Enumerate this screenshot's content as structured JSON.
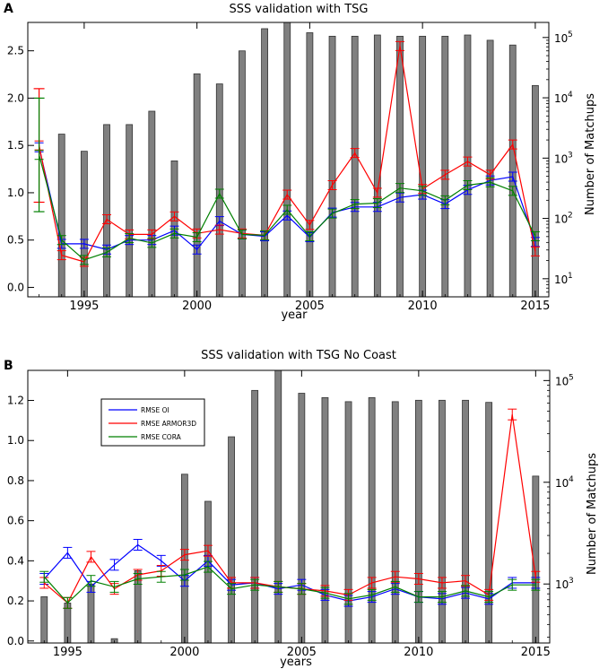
{
  "chart_data": [
    {
      "panel_label": "A",
      "type": "bar",
      "title": "SSS validation with TSG",
      "xlabel": "year",
      "ylabel_left": "",
      "ylabel_right": "Number of Matchups",
      "xlim": [
        1992.5,
        2015.6
      ],
      "ylim": [
        -0.1,
        2.8
      ],
      "y2_log_range": [
        0.7,
        5.25
      ],
      "xticks": [
        1995,
        2000,
        2005,
        2010,
        2015
      ],
      "yticks": [
        0.0,
        0.5,
        1.0,
        1.5,
        2.0,
        2.5
      ],
      "yticks_label": [
        "0.0",
        "0.5",
        "1.0",
        "1.5",
        "2.0",
        "2.5"
      ],
      "y2ticks": [
        1,
        2,
        3,
        4,
        5
      ],
      "y2ticks_label": [
        "10",
        "10",
        "10",
        "10",
        "10"
      ],
      "y2ticks_exp": [
        "1",
        "2",
        "3",
        "4",
        "5"
      ],
      "bars": {
        "x": [
          1994,
          1995,
          1996,
          1997,
          1998,
          1999,
          2000,
          2001,
          2002,
          2003,
          2004,
          2005,
          2006,
          2007,
          2008,
          2009,
          2010,
          2011,
          2012,
          2013,
          2014,
          2015
        ],
        "matchups": [
          2500,
          1300,
          3600,
          3600,
          6000,
          900,
          25000,
          17000,
          60000,
          140000,
          200000,
          120000,
          105000,
          105000,
          110000,
          105000,
          105000,
          105000,
          110000,
          90000,
          75000,
          16000
        ]
      },
      "series": [
        {
          "name": "RMSE OI",
          "color": "#0000ff",
          "x": [
            1993,
            1994,
            1995,
            1996,
            1997,
            1998,
            1999,
            2000,
            2001,
            2002,
            2003,
            2004,
            2005,
            2006,
            2007,
            2008,
            2009,
            2010,
            2011,
            2012,
            2013,
            2014,
            2015
          ],
          "values": [
            1.48,
            0.46,
            0.46,
            0.4,
            0.5,
            0.5,
            0.6,
            0.4,
            0.7,
            0.56,
            0.54,
            0.76,
            0.53,
            0.79,
            0.85,
            0.85,
            0.95,
            0.98,
            0.88,
            1.03,
            1.13,
            1.17,
            0.48
          ]
        },
        {
          "name": "RMSE ARMOR3D",
          "color": "#ff0000",
          "x": [
            1993,
            1994,
            1995,
            1996,
            1997,
            1998,
            1999,
            2000,
            2001,
            2002,
            2003,
            2004,
            2005,
            2006,
            2007,
            2008,
            2009,
            2010,
            2011,
            2012,
            2013,
            2014,
            2015
          ],
          "values": [
            1.5,
            0.34,
            0.27,
            0.72,
            0.56,
            0.56,
            0.75,
            0.57,
            0.61,
            0.57,
            0.55,
            0.98,
            0.66,
            1.08,
            1.42,
            1.0,
            2.55,
            1.04,
            1.19,
            1.33,
            1.19,
            1.51,
            0.38
          ]
        },
        {
          "name": "RMSE CORA",
          "color": "#008000",
          "x": [
            1993,
            1994,
            1995,
            1996,
            1997,
            1998,
            1999,
            2000,
            2001,
            2002,
            2003,
            2004,
            2005,
            2006,
            2007,
            2008,
            2009,
            2010,
            2011,
            2012,
            2013,
            2014,
            2015
          ],
          "values": [
            1.4,
            0.5,
            0.29,
            0.37,
            0.52,
            0.47,
            0.57,
            0.53,
            0.99,
            0.56,
            0.55,
            0.82,
            0.54,
            0.78,
            0.88,
            0.89,
            1.05,
            1.02,
            0.92,
            1.08,
            1.11,
            1.02,
            0.54
          ]
        }
      ],
      "error_bars": [
        {
          "series": "RMSE ARMOR3D",
          "x": 1993,
          "low": 0.9,
          "high": 2.1
        },
        {
          "series": "RMSE CORA",
          "x": 1993,
          "low": 0.8,
          "high": 2.0
        }
      ],
      "legend": null
    },
    {
      "panel_label": "B",
      "type": "bar",
      "title": "SSS validation with TSG No Coast",
      "xlabel": "years",
      "ylabel_left": "",
      "ylabel_right": "Number of Matchups",
      "xlim": [
        1993.3,
        2015.6
      ],
      "ylim": [
        -0.01,
        1.35
      ],
      "y2_log_range": [
        2.42,
        5.1
      ],
      "xticks": [
        1995,
        2000,
        2005,
        2010,
        2015
      ],
      "yticks": [
        0.0,
        0.2,
        0.4,
        0.6,
        0.8,
        1.0,
        1.2
      ],
      "yticks_label": [
        "0.0",
        "0.2",
        "0.4",
        "0.6",
        "0.8",
        "1.0",
        "1.2"
      ],
      "y2ticks": [
        3,
        4,
        5
      ],
      "y2ticks_label": [
        "10",
        "10",
        "10"
      ],
      "y2ticks_exp": [
        "3",
        "4",
        "5"
      ],
      "bars": {
        "x": [
          1994,
          1995,
          1996,
          1997,
          1998,
          1999,
          2000,
          2001,
          2002,
          2003,
          2004,
          2005,
          2006,
          2007,
          2008,
          2009,
          2010,
          2011,
          2012,
          2013,
          2014,
          2015
        ],
        "matchups": [
          750,
          650,
          1000,
          290,
          1350,
          0,
          12000,
          6500,
          28000,
          80000,
          130000,
          75000,
          68000,
          62000,
          68000,
          62000,
          64000,
          64000,
          64000,
          61000,
          0,
          11500
        ]
      },
      "series": [
        {
          "name": "RMSE OI",
          "color": "#0000ff",
          "x": [
            1994,
            1995,
            1996,
            1997,
            1998,
            1999,
            2000,
            2001,
            2002,
            2003,
            2004,
            2005,
            2006,
            2007,
            2008,
            2009,
            2010,
            2011,
            2012,
            2013,
            2014,
            2015
          ],
          "values": [
            0.31,
            0.44,
            0.27,
            0.38,
            0.48,
            0.4,
            0.3,
            0.4,
            0.28,
            0.29,
            0.26,
            0.28,
            0.23,
            0.2,
            0.22,
            0.26,
            0.22,
            0.21,
            0.24,
            0.21,
            0.29,
            0.29
          ]
        },
        {
          "name": "RMSE ARMOR3D",
          "color": "#ff0000",
          "x": [
            1994,
            1995,
            1996,
            1997,
            1998,
            1999,
            2000,
            2001,
            2002,
            2003,
            2004,
            2005,
            2006,
            2007,
            2008,
            2009,
            2010,
            2011,
            2012,
            2013,
            2014,
            2015
          ],
          "values": [
            0.29,
            0.19,
            0.42,
            0.26,
            0.33,
            0.35,
            0.43,
            0.45,
            0.29,
            0.29,
            0.27,
            0.26,
            0.25,
            0.23,
            0.29,
            0.32,
            0.31,
            0.29,
            0.3,
            0.23,
            1.13,
            0.32
          ]
        },
        {
          "name": "RMSE CORA",
          "color": "#008000",
          "x": [
            1994,
            1995,
            1996,
            1997,
            1998,
            1999,
            2000,
            2001,
            2002,
            2003,
            2004,
            2005,
            2006,
            2007,
            2008,
            2009,
            2010,
            2011,
            2012,
            2013,
            2014,
            2015
          ],
          "values": [
            0.32,
            0.19,
            0.3,
            0.27,
            0.31,
            0.32,
            0.33,
            0.37,
            0.26,
            0.28,
            0.27,
            0.26,
            0.24,
            0.21,
            0.23,
            0.27,
            0.22,
            0.22,
            0.25,
            0.22,
            0.28,
            0.28
          ]
        }
      ],
      "legend": {
        "placement": "upper-left",
        "entries": [
          {
            "label": "RMSE OI",
            "color": "#0000ff"
          },
          {
            "label": "RMSE ARMOR3D",
            "color": "#ff0000"
          },
          {
            "label": "RMSE CORA",
            "color": "#008000"
          }
        ]
      }
    }
  ]
}
